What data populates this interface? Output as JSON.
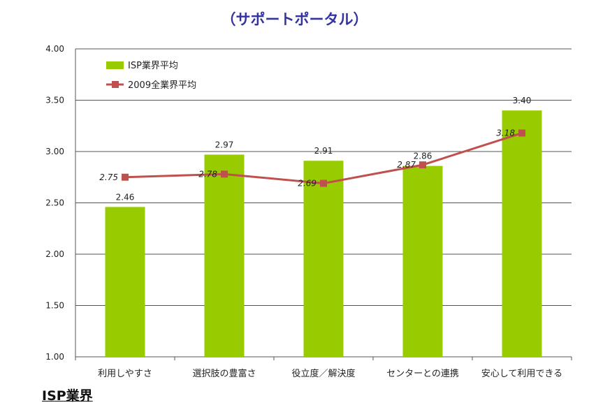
{
  "chart_data": {
    "type": "bar",
    "title": "（サポートポータル）",
    "categories": [
      "利用しやすさ",
      "選択肢の豊富さ",
      "役立度／解決度",
      "センターとの連携",
      "安心して利用できる"
    ],
    "series": [
      {
        "name": "ISP業界平均",
        "type": "bar",
        "values": [
          2.46,
          2.97,
          2.91,
          2.86,
          3.4
        ],
        "color": "#99cc00"
      },
      {
        "name": "2009全業界平均",
        "type": "line",
        "values": [
          2.75,
          2.78,
          2.69,
          2.87,
          3.18
        ],
        "color": "#c0504d"
      }
    ],
    "ylim": [
      1.0,
      4.0
    ],
    "yticks": [
      "1.00",
      "1.50",
      "2.00",
      "2.50",
      "3.00",
      "3.50",
      "4.00"
    ],
    "bar_labels": [
      "2.46",
      "2.97",
      "2.91",
      "2.86",
      "3.40"
    ],
    "line_labels": [
      "2.75",
      "2.78",
      "2.69",
      "2.87",
      "3.18"
    ],
    "grid": true,
    "legend": "top-left"
  },
  "footer": "ISP業界"
}
